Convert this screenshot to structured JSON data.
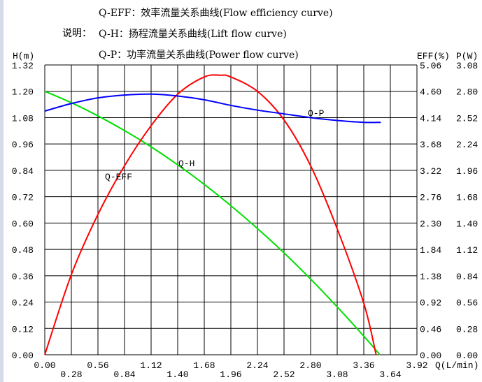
{
  "legend": {
    "prefix": "说明：",
    "items": [
      "Q-EFF：效率流量关系曲线(Flow efficiency curve)",
      "Q-H：扬程流量关系曲线(Lift flow curve)",
      "Q-P：功率流量关系曲线(Power flow curve)"
    ]
  },
  "chart_data": {
    "type": "line",
    "xlabel": "Q(L/min)",
    "ylabel_left": "H(m)",
    "ylabel_right1": "EFF(%)",
    "ylabel_right2": "P(W)",
    "xlim": [
      0,
      3.92
    ],
    "ylim_left": [
      0,
      1.32
    ],
    "ylim_right1": [
      0,
      5.06
    ],
    "ylim_right2": [
      0,
      3.08
    ],
    "grid": true,
    "x_ticks": [
      "0.00",
      "0.28",
      "0.56",
      "0.84",
      "1.12",
      "1.40",
      "1.68",
      "1.96",
      "2.24",
      "2.52",
      "2.80",
      "3.08",
      "3.36",
      "3.64",
      "3.92"
    ],
    "y_ticks_left": [
      "0.00",
      "0.12",
      "0.24",
      "0.36",
      "0.48",
      "0.60",
      "0.72",
      "0.84",
      "0.96",
      "1.08",
      "1.20",
      "1.32"
    ],
    "y_ticks_right1": [
      "0.00",
      "0.46",
      "0.92",
      "1.38",
      "1.84",
      "2.30",
      "2.76",
      "3.22",
      "3.68",
      "4.14",
      "4.60",
      "5.06"
    ],
    "y_ticks_right2": [
      "0.00",
      "0.28",
      "0.56",
      "0.84",
      "1.12",
      "1.40",
      "1.68",
      "1.96",
      "2.24",
      "2.52",
      "2.80",
      "3.08"
    ],
    "series": [
      {
        "name": "Q-H",
        "axis": "left",
        "color": "#00e000",
        "x": [
          0,
          0.28,
          0.56,
          0.84,
          1.12,
          1.4,
          1.68,
          1.96,
          2.24,
          2.52,
          2.8,
          3.08,
          3.36,
          3.53
        ],
        "y": [
          1.2,
          1.148,
          1.088,
          1.021,
          0.947,
          0.865,
          0.776,
          0.679,
          0.575,
          0.464,
          0.345,
          0.218,
          0.085,
          0
        ]
      },
      {
        "name": "Q-EFF",
        "axis": "right1",
        "color": "#ff0000",
        "x": [
          0,
          0.28,
          0.56,
          0.84,
          1.12,
          1.4,
          1.68,
          1.85,
          1.96,
          2.24,
          2.52,
          2.8,
          3.08,
          3.36,
          3.49
        ],
        "y": [
          0,
          1.4,
          2.45,
          3.3,
          4.0,
          4.55,
          4.85,
          4.88,
          4.85,
          4.6,
          4.1,
          3.3,
          2.2,
          0.9,
          0
        ]
      },
      {
        "name": "Q-P",
        "axis": "right2",
        "color": "#0000ff",
        "x": [
          0,
          0.28,
          0.56,
          0.84,
          1.12,
          1.4,
          1.68,
          1.96,
          2.24,
          2.52,
          2.8,
          3.08,
          3.36,
          3.54
        ],
        "y": [
          2.59,
          2.67,
          2.73,
          2.76,
          2.77,
          2.75,
          2.71,
          2.65,
          2.6,
          2.56,
          2.52,
          2.49,
          2.47,
          2.47
        ]
      }
    ]
  }
}
